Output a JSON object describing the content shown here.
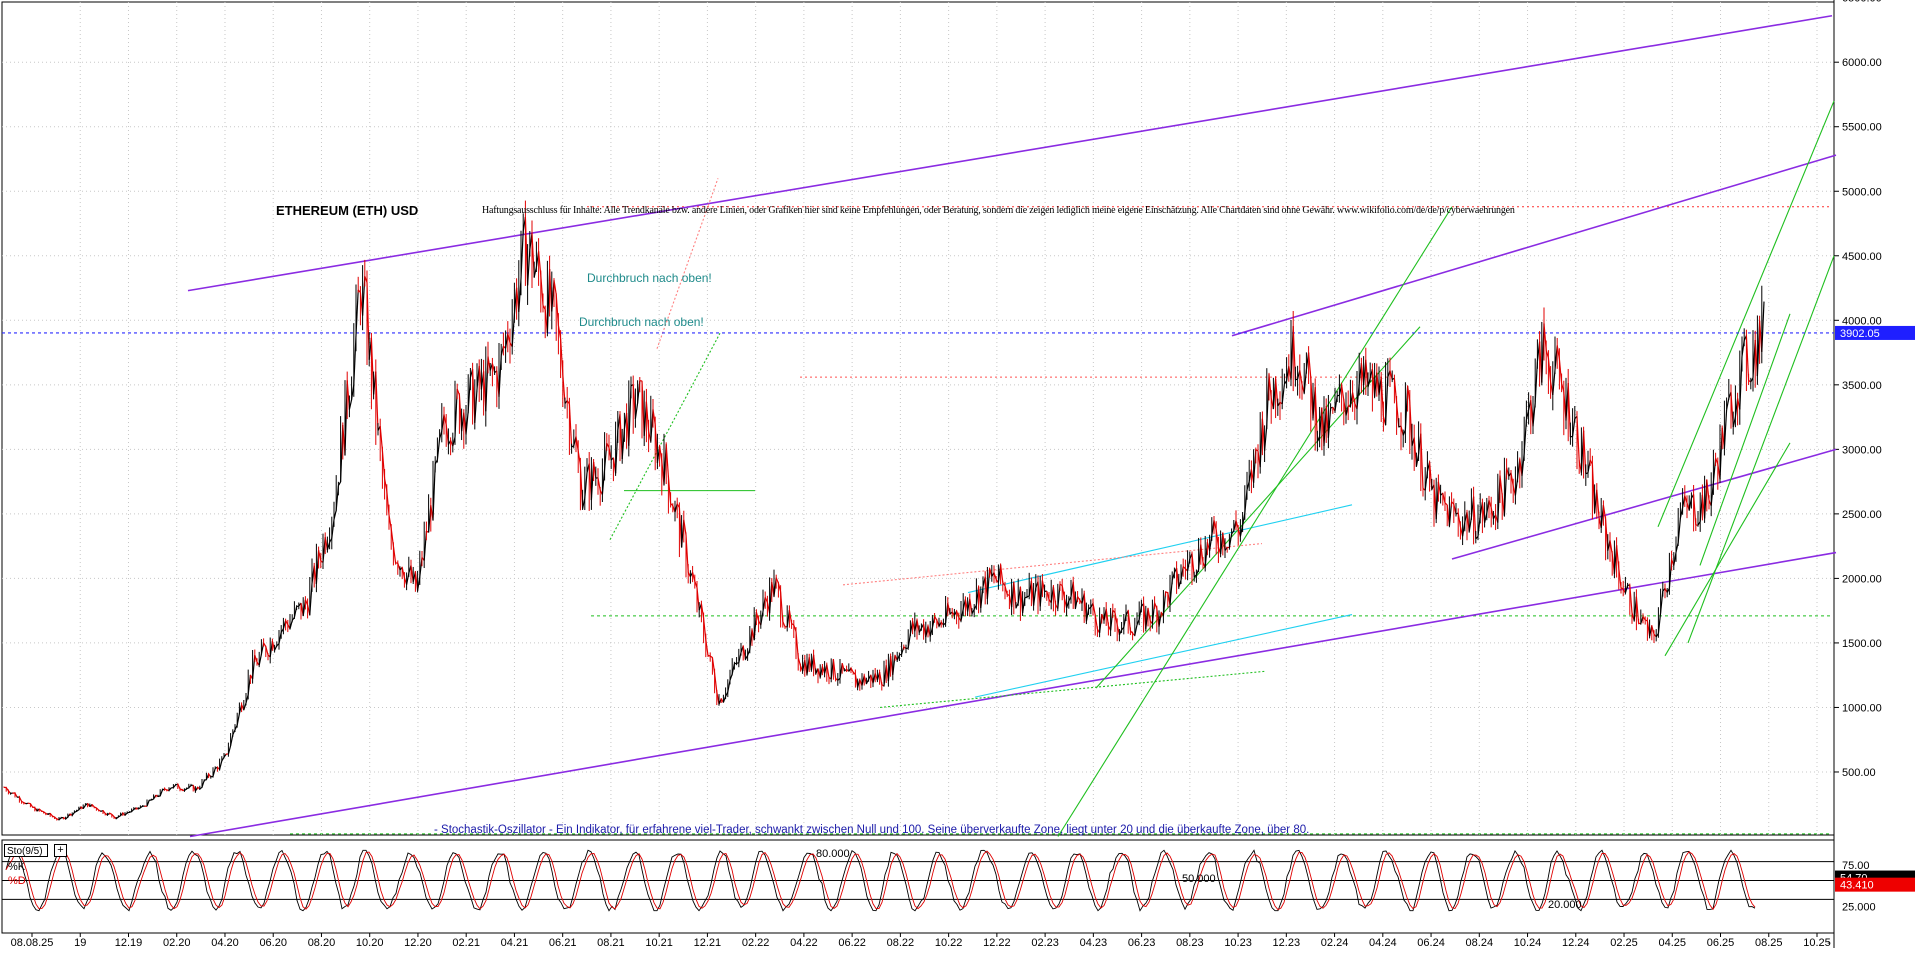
{
  "title": "ETHEREUM (ETH) USD",
  "disclaimer": "Haftungsausschluss für Inhalte: Alle Trendkanäle bzw. andere Linien, oder Grafiken hier sind keine Empfehlungen, oder Beratung, sondern die zeigen lediglich meine eigene Einschätzung. Alle Chartdaten sind ohne Gewähr. www.wikifolio.com/de/de/p/cyberwaehrungen",
  "annotations": [
    "Durchbruch nach oben!",
    "Durchbruch nach oben!"
  ],
  "stochastic_note": "- Stochastik-Oszillator - Ein Indikator, für erfahrene viel-Trader, schwankt zwischen Null und 100. Seine überverkaufte Zone, liegt unter 20 und die überkaufte Zone, über 80.",
  "indicator": {
    "name": "Sto(9/5)",
    "k_label": "%K",
    "d_label": "%D",
    "k_value": "54.70",
    "d_value": "43.410",
    "levels": [
      "80.000",
      "50.000",
      "20.000"
    ],
    "axis_ticks": [
      "75.00",
      "25.000"
    ]
  },
  "colors": {
    "price_up": "#000000",
    "price_down": "#e00000",
    "trend_purple": "#8a2be2",
    "trend_green": "#1fbf1f",
    "trend_cyan": "#1fd0f0",
    "current_line": "#2b2bff",
    "price_tag": "#1f1fff",
    "d_tag": "#ee0000",
    "k_tag": "#000000"
  },
  "chart_data": {
    "type": "line",
    "title": "ETHEREUM (ETH) USD",
    "xlabel": "",
    "ylabel": "",
    "ylim": [
      0,
      6600
    ],
    "y_ticks": [
      500,
      1000,
      1500,
      2000,
      2500,
      3000,
      3500,
      4000,
      4500,
      5000,
      5500,
      6000,
      6500
    ],
    "y_tick_labels": [
      "500.00",
      "1000.00",
      "1500.00",
      "2000.00",
      "2500.00",
      "3000.00",
      "3500.00",
      "4000.00",
      "4500.00",
      "5000.00",
      "5500.00",
      "6000.00",
      "6500.00"
    ],
    "x_tick_labels": [
      "08.08.25",
      "19",
      "12.19",
      "02.20",
      "04.20",
      "06.20",
      "08.20",
      "10.20",
      "12.20",
      "02.21",
      "04.21",
      "06.21",
      "08.21",
      "10.21",
      "12.21",
      "02.22",
      "04.22",
      "06.22",
      "08.22",
      "10.22",
      "12.22",
      "02.23",
      "04.23",
      "06.23",
      "08.23",
      "10.23",
      "12.23",
      "02.24",
      "04.24",
      "06.24",
      "08.24",
      "10.24",
      "12.24",
      "02.25",
      "04.25",
      "06.25",
      "08.25",
      "10.25"
    ],
    "current_price": 3902.05,
    "current_price_label": "3902.05",
    "grid": true,
    "series": [
      {
        "name": "ETH/USD",
        "x": [
          "08.19",
          "10.19",
          "12.19",
          "02.20",
          "04.20",
          "06.20",
          "08.20",
          "10.20",
          "12.20",
          "01.21",
          "02.21",
          "03.21",
          "04.21",
          "05.21",
          "06.21",
          "07.21",
          "08.21",
          "09.21",
          "10.21",
          "11.21",
          "12.21",
          "01.22",
          "02.22",
          "03.22",
          "04.22",
          "05.22",
          "06.22",
          "07.22",
          "08.22",
          "09.22",
          "10.22",
          "11.22",
          "12.22",
          "01.23",
          "02.23",
          "03.23",
          "04.23",
          "05.23",
          "06.23",
          "07.23",
          "08.23",
          "09.23",
          "10.23",
          "11.23",
          "12.23",
          "01.24",
          "02.24",
          "03.24",
          "04.24",
          "05.24",
          "06.24",
          "07.24",
          "08.24",
          "09.24",
          "10.24",
          "11.24",
          "12.24",
          "01.25",
          "02.25",
          "03.25",
          "04.25",
          "05.25",
          "06.25",
          "07.25",
          "08.25"
        ],
        "values": [
          380,
          220,
          130,
          250,
          150,
          230,
          390,
          370,
          600,
          1300,
          1600,
          1800,
          2600,
          4300,
          2300,
          1900,
          3200,
          3400,
          3600,
          4600,
          4000,
          2700,
          2900,
          3400,
          2900,
          2000,
          1050,
          1500,
          1950,
          1350,
          1300,
          1200,
          1250,
          1600,
          1650,
          1800,
          2000,
          1850,
          1900,
          1850,
          1650,
          1650,
          1750,
          2100,
          2300,
          2400,
          3400,
          3800,
          3100,
          3500,
          3450,
          3300,
          2600,
          2450,
          2500,
          2800,
          3800,
          3300,
          2500,
          1900,
          1500,
          2500,
          2600,
          3500,
          3900
        ]
      }
    ]
  }
}
